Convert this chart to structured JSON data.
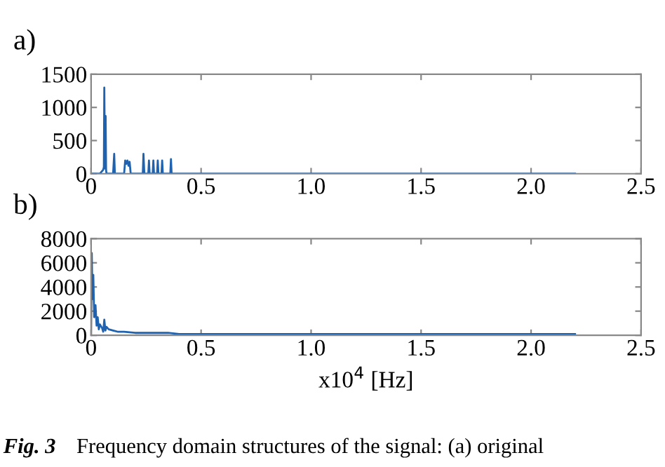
{
  "chart_data": [
    {
      "type": "line",
      "title": "a)",
      "xlim": [
        0,
        2.5
      ],
      "ylim": [
        0,
        1500
      ],
      "xticks": [
        0,
        0.5,
        {
          "value": 1,
          "label": "1.0"
        },
        {
          "value": 1.5,
          "label": "1.5"
        },
        {
          "value": 2,
          "label": "2.0"
        },
        2.5
      ],
      "yticks": [
        0,
        500,
        1000,
        1500
      ],
      "grid": false,
      "series": [
        {
          "color": "#1f62b0",
          "x": [
            0,
            0.04,
            0.055,
            0.058,
            0.06,
            0.063,
            0.066,
            0.068,
            0.07,
            0.1,
            0.105,
            0.108,
            0.15,
            0.155,
            0.16,
            0.165,
            0.17,
            0.175,
            0.18,
            0.235,
            0.238,
            0.242,
            0.26,
            0.263,
            0.266,
            0.28,
            0.283,
            0.286,
            0.3,
            0.303,
            0.306,
            0.32,
            0.323,
            0.326,
            0.36,
            0.363,
            0.366,
            2.2
          ],
          "values": [
            0,
            0,
            60,
            100,
            1300,
            80,
            870,
            60,
            0,
            0,
            300,
            0,
            0,
            200,
            150,
            200,
            120,
            180,
            0,
            0,
            300,
            0,
            0,
            200,
            0,
            0,
            200,
            0,
            0,
            200,
            0,
            0,
            200,
            0,
            0,
            220,
            0,
            0
          ]
        }
      ]
    },
    {
      "type": "line",
      "title": "b)",
      "xlabel": "x10$^{4}$ [Hz]",
      "xlim": [
        0,
        2.5
      ],
      "ylim": [
        0,
        8000
      ],
      "xticks": [
        0,
        0.5,
        {
          "value": 1,
          "label": "1.0"
        },
        {
          "value": 1.5,
          "label": "1.5"
        },
        {
          "value": 2,
          "label": "2.0"
        },
        2.5
      ],
      "yticks": [
        0,
        2000,
        4000,
        6000,
        8000
      ],
      "grid": false,
      "annotations": [
        "Fig. 3",
        "Frequency domain structures of the signal: (a) original"
      ],
      "series": [
        {
          "color": "#1f62b0",
          "x": [
            0,
            0.003,
            0.006,
            0.01,
            0.014,
            0.02,
            0.025,
            0.03,
            0.035,
            0.04,
            0.05,
            0.055,
            0.06,
            0.065,
            0.07,
            0.08,
            0.1,
            0.12,
            0.15,
            0.2,
            0.25,
            0.3,
            0.35,
            0.4,
            0.5,
            0.7,
            1.0,
            1.5,
            2.2
          ],
          "values": [
            0,
            6800,
            3000,
            5000,
            1500,
            2500,
            800,
            1500,
            500,
            900,
            600,
            300,
            1300,
            400,
            700,
            500,
            400,
            300,
            300,
            200,
            200,
            200,
            200,
            100,
            100,
            100,
            100,
            100,
            100
          ]
        }
      ]
    }
  ]
}
